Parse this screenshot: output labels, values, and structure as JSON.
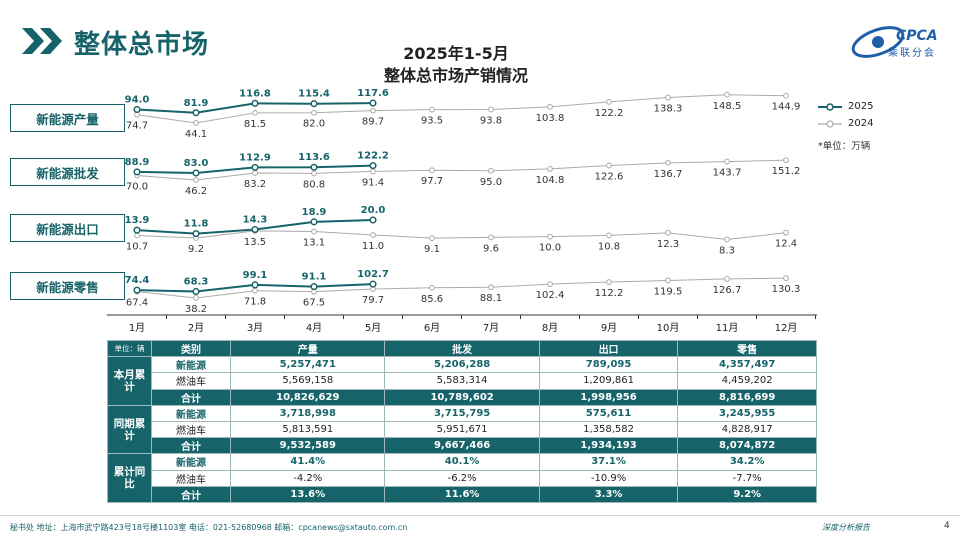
{
  "header": {
    "title": "整体总市场",
    "logo_text": "CPCA",
    "logo_sub": "乘联分会"
  },
  "chart_data": {
    "type": "line",
    "title": "2025年1-5月",
    "subtitle": "整体总市场产销情况",
    "unit_note": "*单位：万辆",
    "categories": [
      "1月",
      "2月",
      "3月",
      "4月",
      "5月",
      "6月",
      "7月",
      "8月",
      "9月",
      "10月",
      "11月",
      "12月"
    ],
    "legend": {
      "placement": "top-right",
      "items": [
        "2025",
        "2024"
      ]
    },
    "colors": {
      "s2025": "#16646a",
      "s2024": "#aaaaaa"
    },
    "panels": [
      {
        "label": "新能源产量",
        "series": [
          {
            "name": "2025",
            "values": [
              94.0,
              81.9,
              116.8,
              115.4,
              117.6
            ]
          },
          {
            "name": "2024",
            "values": [
              74.7,
              44.1,
              81.5,
              82.0,
              89.7,
              93.5,
              93.8,
              103.8,
              122.2,
              138.3,
              148.5,
              144.9
            ]
          }
        ]
      },
      {
        "label": "新能源批发",
        "series": [
          {
            "name": "2025",
            "values": [
              88.9,
              83.0,
              112.9,
              113.6,
              122.2
            ]
          },
          {
            "name": "2024",
            "values": [
              70.0,
              46.2,
              83.2,
              80.8,
              91.4,
              97.7,
              95.0,
              104.8,
              122.6,
              136.7,
              143.7,
              151.2
            ]
          }
        ]
      },
      {
        "label": "新能源出口",
        "series": [
          {
            "name": "2025",
            "values": [
              13.9,
              11.8,
              14.3,
              18.9,
              20.0
            ]
          },
          {
            "name": "2024",
            "values": [
              10.7,
              9.2,
              13.5,
              13.1,
              11.0,
              9.1,
              9.6,
              10.0,
              10.8,
              12.3,
              8.3,
              12.4
            ]
          }
        ]
      },
      {
        "label": "新能源零售",
        "series": [
          {
            "name": "2025",
            "values": [
              74.4,
              68.3,
              99.1,
              91.1,
              102.7
            ]
          },
          {
            "name": "2024",
            "values": [
              67.4,
              38.2,
              71.8,
              67.5,
              79.7,
              85.6,
              88.1,
              102.4,
              112.2,
              119.5,
              126.7,
              130.3
            ]
          }
        ]
      }
    ]
  },
  "table": {
    "unit": "单位：辆",
    "headers": [
      "类别",
      "产量",
      "批发",
      "出口",
      "零售"
    ],
    "groups": [
      {
        "name": "本月累计",
        "rows": [
          {
            "type": "新能源",
            "values": [
              "5,257,471",
              "5,206,288",
              "789,095",
              "4,357,497"
            ]
          },
          {
            "type": "燃油车",
            "values": [
              "5,569,158",
              "5,583,314",
              "1,209,861",
              "4,459,202"
            ]
          },
          {
            "type": "合计",
            "values": [
              "10,826,629",
              "10,789,602",
              "1,998,956",
              "8,816,699"
            ]
          }
        ]
      },
      {
        "name": "同期累计",
        "rows": [
          {
            "type": "新能源",
            "values": [
              "3,718,998",
              "3,715,795",
              "575,611",
              "3,245,955"
            ]
          },
          {
            "type": "燃油车",
            "values": [
              "5,813,591",
              "5,951,671",
              "1,358,582",
              "4,828,917"
            ]
          },
          {
            "type": "合计",
            "values": [
              "9,532,589",
              "9,667,466",
              "1,934,193",
              "8,074,872"
            ]
          }
        ]
      },
      {
        "name": "累计同比",
        "rows": [
          {
            "type": "新能源",
            "values": [
              "41.4%",
              "40.1%",
              "37.1%",
              "34.2%"
            ]
          },
          {
            "type": "燃油车",
            "values": [
              "-4.2%",
              "-6.2%",
              "-10.9%",
              "-7.7%"
            ]
          },
          {
            "type": "合计",
            "values": [
              "13.6%",
              "11.6%",
              "3.3%",
              "9.2%"
            ]
          }
        ]
      }
    ]
  },
  "footer": {
    "text": "秘书处  地址：上海市武宁路423号18号楼1103室  电话：021-52680968  邮箱：cpcanews@sxtauto.com.cn",
    "right": "深度分析报告",
    "page": "4"
  }
}
